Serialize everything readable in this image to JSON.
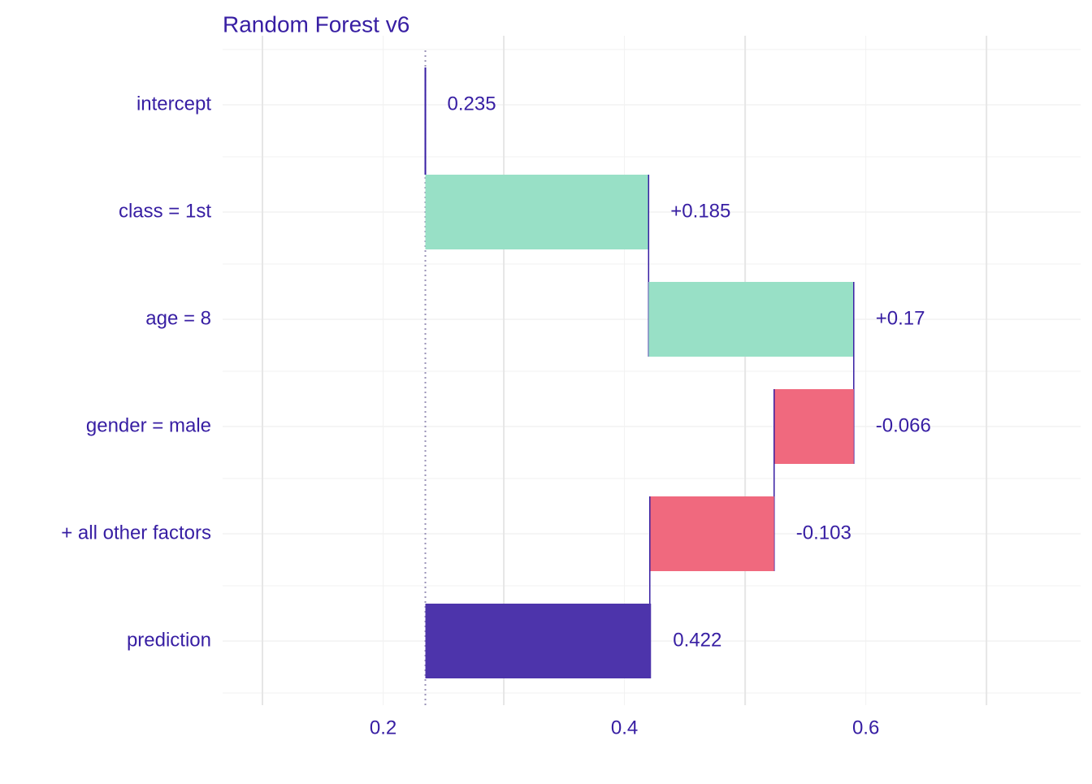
{
  "chart_data": {
    "type": "waterfall",
    "title": "Random Forest v6",
    "categories": [
      "intercept",
      "class = 1st",
      "age = 8",
      "gender = male",
      "+ all other factors",
      "prediction"
    ],
    "values": [
      0.235,
      0.185,
      0.17,
      -0.066,
      -0.103,
      0.422
    ],
    "value_labels": [
      "0.235",
      "+0.185",
      "+0.17",
      "-0.066",
      "-0.103",
      "0.422"
    ],
    "colors": {
      "positive": "#98e0c6",
      "negative": "#f0697e",
      "prediction": "#4d34ab",
      "line": "#371ea3"
    },
    "xlim": [
      0.067,
      0.778
    ],
    "xticks": [
      0.2,
      0.4,
      0.6
    ],
    "xticks_minor": [
      0.1,
      0.3,
      0.5,
      0.7
    ],
    "grid": true
  }
}
